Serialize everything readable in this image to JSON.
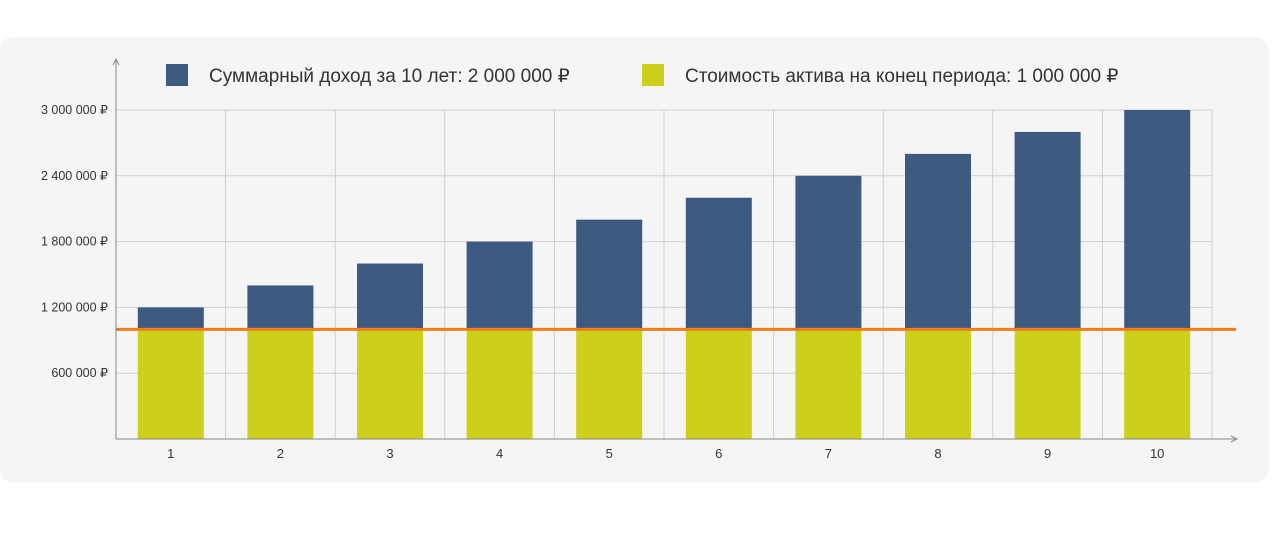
{
  "chart_data": {
    "type": "bar",
    "stacked": true,
    "categories": [
      "1",
      "2",
      "3",
      "4",
      "5",
      "6",
      "7",
      "8",
      "9",
      "10"
    ],
    "series": [
      {
        "name": "Стоимость актива на конец периода: 1 000 000 ₽",
        "color": "#cdd01b",
        "values": [
          1000000,
          1000000,
          1000000,
          1000000,
          1000000,
          1000000,
          1000000,
          1000000,
          1000000,
          1000000
        ]
      },
      {
        "name": "Суммарный доход за 10 лет: 2 000 000 ₽",
        "color": "#3d5a80",
        "values": [
          200000,
          400000,
          600000,
          800000,
          1000000,
          1200000,
          1400000,
          1600000,
          1800000,
          2000000
        ]
      }
    ],
    "reference_line": {
      "value": 1000000,
      "color": "#f07d1a"
    },
    "y_ticks": [
      600000,
      1200000,
      1800000,
      2400000,
      3000000
    ],
    "y_tick_labels": [
      "600 000 ₽",
      "1 200 000 ₽",
      "1 800 000 ₽",
      "2 400 000 ₽",
      "3 000 000 ₽"
    ],
    "ylim": [
      0,
      3000000
    ],
    "grid": true,
    "legend_position": "top"
  }
}
